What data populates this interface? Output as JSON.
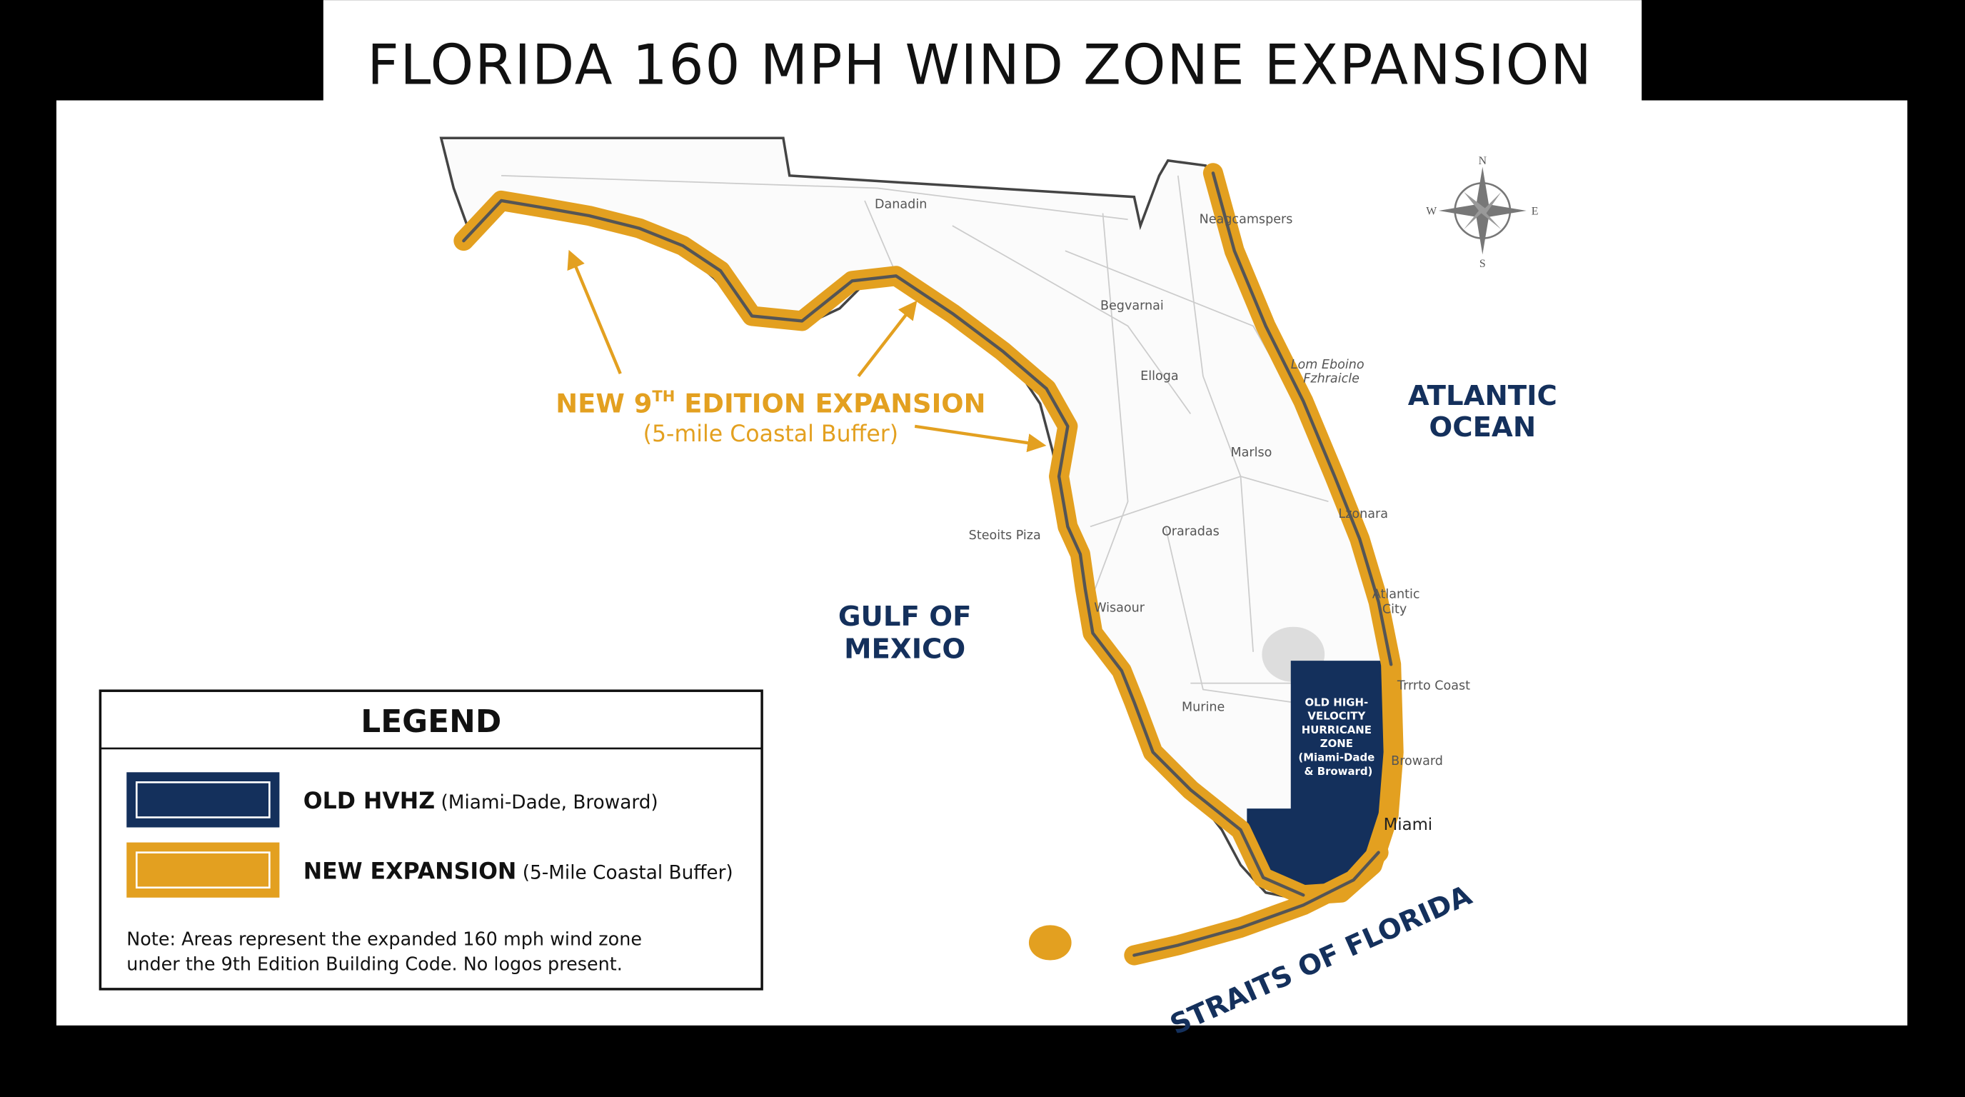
{
  "title": "FLORIDA 160 MPH WIND ZONE EXPANSION",
  "annotation": {
    "title_start": "NEW 9",
    "title_superscript": "TH",
    "title_end": " EDITION EXPANSION",
    "subtitle": "(5-mile Coastal Buffer)"
  },
  "water_labels": {
    "atlantic": [
      "ATLANTIC",
      "OCEAN"
    ],
    "gulf": [
      "GULF OF",
      "MEXICO"
    ],
    "straits": "STRAITS OF FLORIDA"
  },
  "compass": {
    "north": "N",
    "east": "E",
    "south": "S",
    "west": "W"
  },
  "hvhz_label": [
    "OLD HIGH-",
    "VELOCITY",
    "HURRICANE",
    "ZONE",
    "(Miami-Dade",
    "& Broward)"
  ],
  "places": [
    "Danadin",
    "Neagcamspers",
    "Begvarnai",
    "Elloga",
    "Lom Eboino",
    "Fzhraicle",
    "Marlso",
    "Lzonara",
    "Steoits Piza",
    "Oraradas",
    "Wisaour",
    "Atlantic",
    "City",
    "Trrrto Coast",
    "Murine",
    "Broward",
    "Miami"
  ],
  "legend": {
    "title": "LEGEND",
    "items": [
      {
        "name": "OLD HVHZ",
        "detail": " (Miami-Dade, Broward)"
      },
      {
        "name": "NEW EXPANSION",
        "detail": " (5-Mile Coastal Buffer)"
      }
    ],
    "note": [
      "Note: Areas represent the expanded 160 mph wind zone",
      "under the 9th Edition Building Code. No logos present."
    ]
  }
}
